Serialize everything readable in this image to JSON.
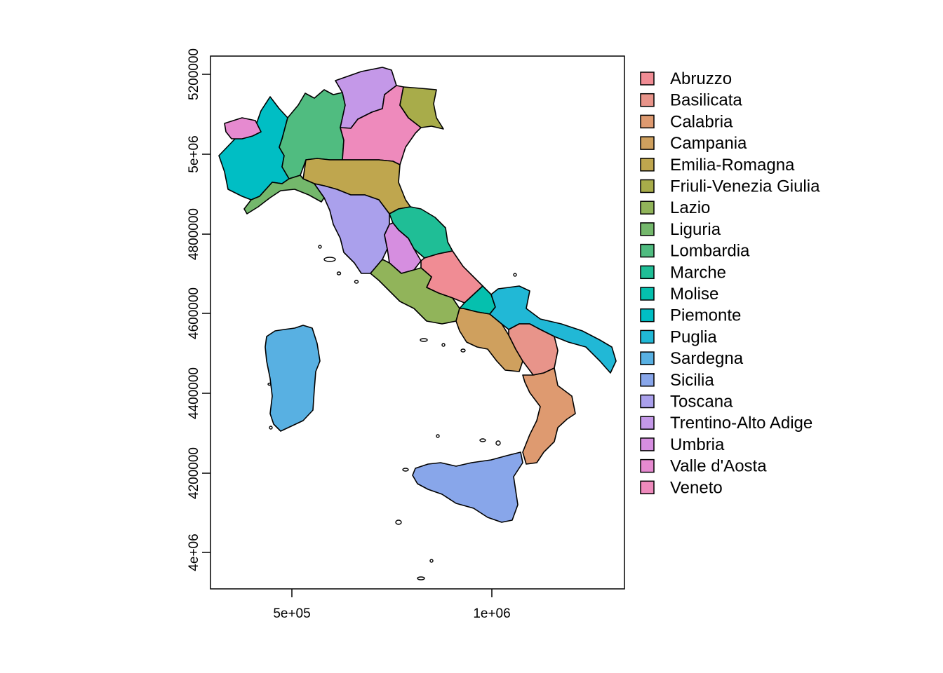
{
  "map": {
    "x_axis": {
      "ticks": [
        "5e+05",
        "1e+06"
      ]
    },
    "y_axis": {
      "ticks": [
        "4e+06",
        "4200000",
        "4400000",
        "4600000",
        "4800000",
        "5e+06",
        "5200000"
      ]
    }
  },
  "legend": {
    "position": "right",
    "items": [
      {
        "label": "Abruzzo",
        "color": "#F08C94"
      },
      {
        "label": "Basilicata",
        "color": "#E8948A"
      },
      {
        "label": "Calabria",
        "color": "#DE9A70"
      },
      {
        "label": "Campania",
        "color": "#CFA05E"
      },
      {
        "label": "Emilia-Romagna",
        "color": "#BFA64E"
      },
      {
        "label": "Friuli-Venezia Giulia",
        "color": "#A8AC4A"
      },
      {
        "label": "Lazio",
        "color": "#91B45A"
      },
      {
        "label": "Liguria",
        "color": "#74B86C"
      },
      {
        "label": "Lombardia",
        "color": "#50BC80"
      },
      {
        "label": "Marche",
        "color": "#1FBE96"
      },
      {
        "label": "Molise",
        "color": "#05C0AE"
      },
      {
        "label": "Piemonte",
        "color": "#00BEC4"
      },
      {
        "label": "Puglia",
        "color": "#21B8D6"
      },
      {
        "label": "Sardegna",
        "color": "#58B0E2"
      },
      {
        "label": "Sicilia",
        "color": "#88A6EA"
      },
      {
        "label": "Toscana",
        "color": "#AAA0EC"
      },
      {
        "label": "Trentino-Alto Adige",
        "color": "#C498E8"
      },
      {
        "label": "Umbria",
        "color": "#D68EE0"
      },
      {
        "label": "Valle d'Aosta",
        "color": "#E68AD0"
      },
      {
        "label": "Veneto",
        "color": "#EE8ABC"
      }
    ]
  }
}
